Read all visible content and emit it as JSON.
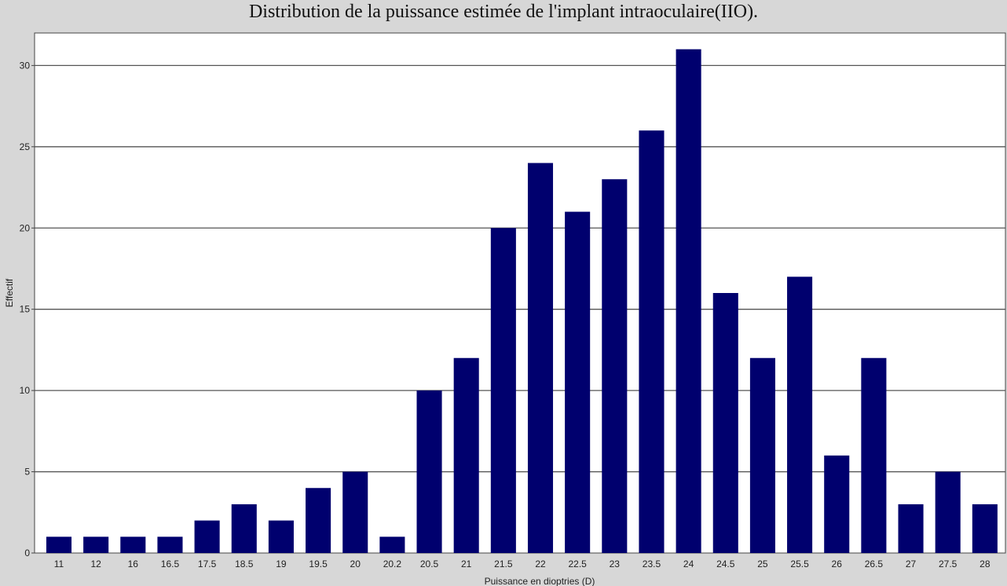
{
  "chart_data": {
    "type": "bar",
    "title": "Distribution de la puissance estimée de l'implant intraoculaire(IIO).",
    "xlabel": "Puissance en dioptries (D)",
    "ylabel": "Effectif",
    "categories": [
      "11",
      "12",
      "16",
      "16.5",
      "17.5",
      "18.5",
      "19",
      "19.5",
      "20",
      "20.2",
      "20.5",
      "21",
      "21.5",
      "22",
      "22.5",
      "23",
      "23.5",
      "24",
      "24.5",
      "25",
      "25.5",
      "26",
      "26.5",
      "27",
      "27.5",
      "28"
    ],
    "series": [
      {
        "values": [
          1,
          1,
          1,
          1,
          2,
          3,
          2,
          4,
          5,
          1,
          10,
          12,
          20,
          24,
          21,
          23,
          26,
          31,
          16,
          12,
          17,
          6,
          12,
          3,
          5,
          3
        ]
      }
    ],
    "ylim": [
      0,
      32
    ],
    "yticks": [
      0,
      5,
      10,
      15,
      20,
      25,
      30
    ],
    "grid": true,
    "legend": "none",
    "colors": {
      "bar": "#00006e",
      "plot_bg": "#ffffff",
      "frame_bg": "#d7d7d7",
      "grid": "#555555"
    }
  }
}
